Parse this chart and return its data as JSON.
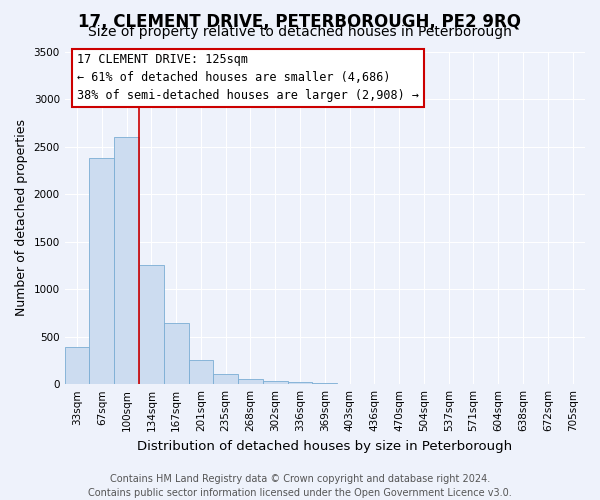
{
  "title": "17, CLEMENT DRIVE, PETERBOROUGH, PE2 9RQ",
  "subtitle": "Size of property relative to detached houses in Peterborough",
  "xlabel": "Distribution of detached houses by size in Peterborough",
  "ylabel": "Number of detached properties",
  "bar_labels": [
    "33sqm",
    "67sqm",
    "100sqm",
    "134sqm",
    "167sqm",
    "201sqm",
    "235sqm",
    "268sqm",
    "302sqm",
    "336sqm",
    "369sqm",
    "403sqm",
    "436sqm",
    "470sqm",
    "504sqm",
    "537sqm",
    "571sqm",
    "604sqm",
    "638sqm",
    "672sqm",
    "705sqm"
  ],
  "bar_values": [
    390,
    2380,
    2600,
    1250,
    640,
    255,
    105,
    55,
    30,
    20,
    10,
    0,
    0,
    0,
    0,
    0,
    0,
    0,
    0,
    0,
    0
  ],
  "bar_color": "#ccdcf0",
  "bar_edge_color": "#7aadd4",
  "vline_x_idx": 3,
  "vline_color": "#cc0000",
  "ylim": [
    0,
    3500
  ],
  "yticks": [
    0,
    500,
    1000,
    1500,
    2000,
    2500,
    3000,
    3500
  ],
  "annotation_line1": "17 CLEMENT DRIVE: 125sqm",
  "annotation_line2": "← 61% of detached houses are smaller (4,686)",
  "annotation_line3": "38% of semi-detached houses are larger (2,908) →",
  "annotation_box_color": "#cc0000",
  "footer_line1": "Contains HM Land Registry data © Crown copyright and database right 2024.",
  "footer_line2": "Contains public sector information licensed under the Open Government Licence v3.0.",
  "background_color": "#eef2fb",
  "grid_color": "#ffffff",
  "title_fontsize": 12,
  "subtitle_fontsize": 10,
  "ylabel_fontsize": 9,
  "xlabel_fontsize": 9.5,
  "tick_fontsize": 7.5,
  "annotation_fontsize": 8.5,
  "footer_fontsize": 7
}
